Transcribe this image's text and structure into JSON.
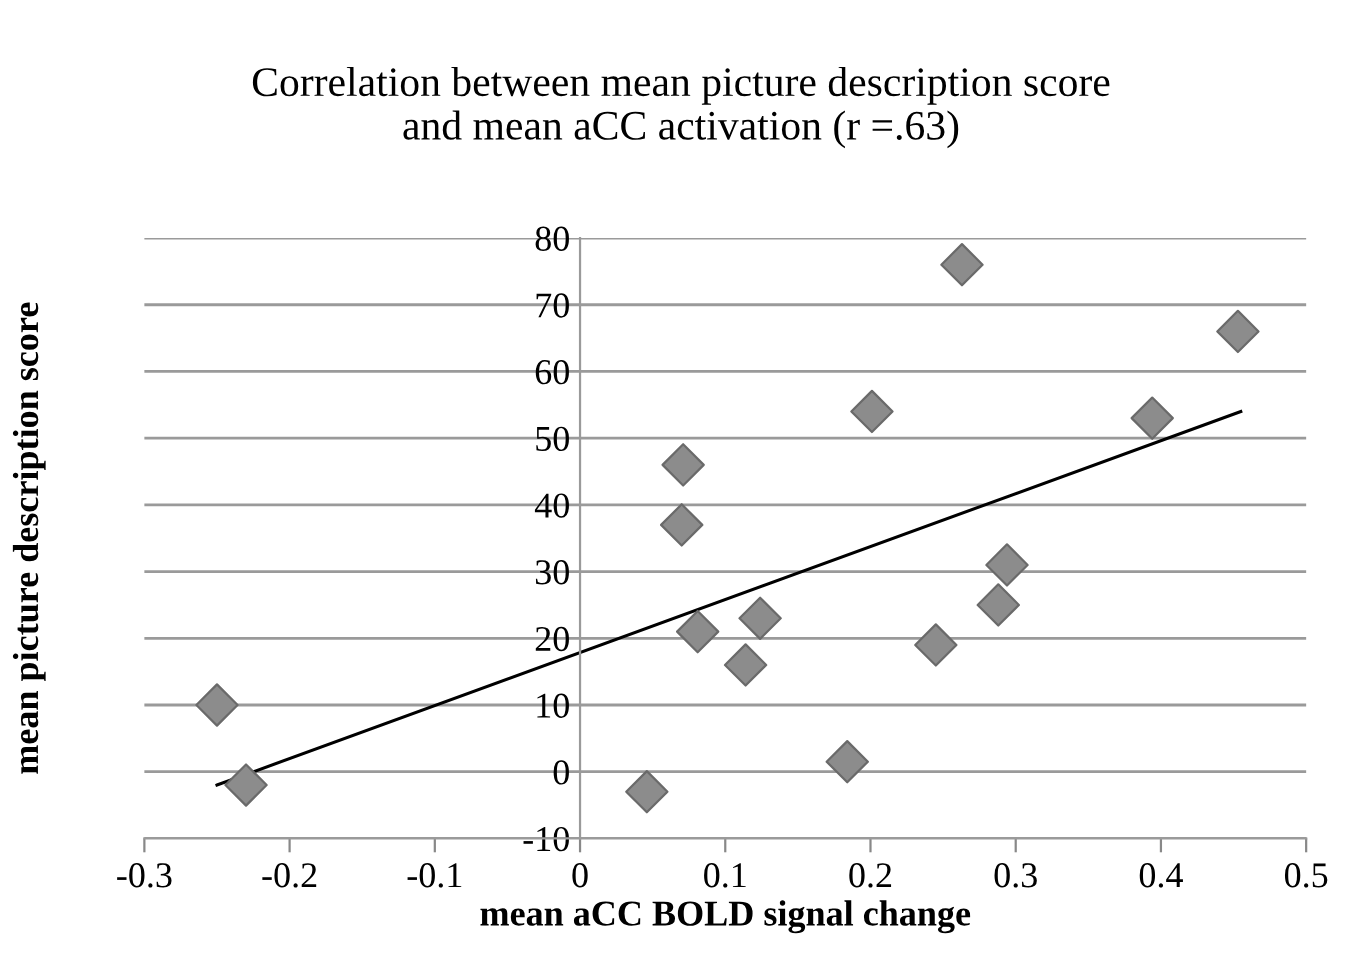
{
  "chart_data": {
    "type": "scatter",
    "title": "Correlation between mean picture description score\nand mean aCC activation (r =.63)",
    "xlabel": "mean aCC BOLD signal change",
    "ylabel": "mean picture description score",
    "xlim": [
      -0.3,
      0.5
    ],
    "xticks": [
      -0.3,
      -0.2,
      -0.1,
      0,
      0.1,
      0.2,
      0.3,
      0.4,
      0.5
    ],
    "ylim": [
      -10,
      80
    ],
    "yticks": [
      -10,
      0,
      10,
      20,
      30,
      40,
      50,
      60,
      70,
      80
    ],
    "grid": "y",
    "legend": false,
    "series": [
      {
        "marker": "diamond",
        "color": "#8c8c8c",
        "x": [
          -0.25,
          -0.23,
          0.046,
          0.071,
          0.07,
          0.081,
          0.114,
          0.124,
          0.184,
          0.201,
          0.245,
          0.263,
          0.288,
          0.294,
          0.394,
          0.453
        ],
        "values": [
          10,
          -2,
          -3,
          46,
          37,
          21,
          16,
          23,
          1.5,
          54,
          19,
          76,
          25,
          31,
          53,
          66
        ]
      },
      {
        "type": "line",
        "color": "#000000",
        "x": [
          -0.25,
          0.455
        ],
        "values": [
          -2,
          54
        ]
      }
    ]
  }
}
